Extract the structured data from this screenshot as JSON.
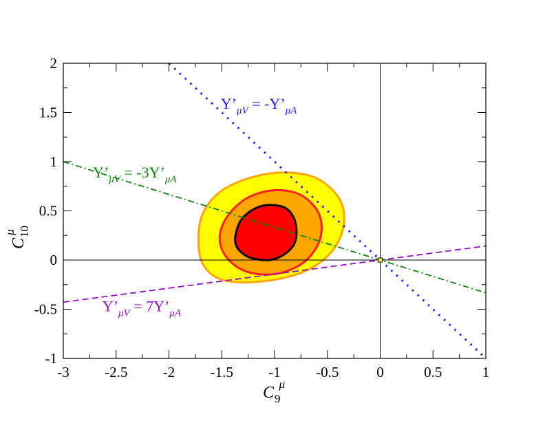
{
  "chart_data": {
    "type": "contour",
    "xlim": [
      -3,
      1
    ],
    "ylim": [
      -1,
      2
    ],
    "xticks": [
      "-3",
      "-2.5",
      "-2",
      "-1.5",
      "-1",
      "-0.5",
      "0",
      "0.5",
      "1"
    ],
    "yticks": [
      "-1",
      "-0.5",
      "0",
      "0.5",
      "1",
      "1.5",
      "2"
    ],
    "xtick_values": [
      -3,
      -2.5,
      -2,
      -1.5,
      -1,
      -0.5,
      0,
      0.5,
      1
    ],
    "ytick_values": [
      -1,
      -0.5,
      0,
      0.5,
      1,
      1.5,
      2
    ],
    "xlabel": {
      "base": "C",
      "sub": "9",
      "sup": "μ"
    },
    "ylabel": {
      "base": "C",
      "sub": "10",
      "sup": "μ"
    },
    "reference_lines": [
      {
        "axis": "x",
        "value": 0
      },
      {
        "axis": "y",
        "value": 0
      }
    ],
    "best_fit_point": {
      "x": 0,
      "y": 0
    },
    "regions": [
      {
        "name": "3-sigma",
        "fill": "#ffff00",
        "stroke": "#ffa500",
        "points": [
          [
            -1.72,
            0.22
          ],
          [
            -1.68,
            0.47
          ],
          [
            -1.52,
            0.69
          ],
          [
            -1.25,
            0.83
          ],
          [
            -0.92,
            0.89
          ],
          [
            -0.6,
            0.83
          ],
          [
            -0.38,
            0.61
          ],
          [
            -0.35,
            0.33
          ],
          [
            -0.48,
            0.06
          ],
          [
            -0.75,
            -0.13
          ],
          [
            -1.15,
            -0.22
          ],
          [
            -1.5,
            -0.2
          ],
          [
            -1.68,
            -0.04
          ]
        ]
      },
      {
        "name": "2-sigma",
        "fill": "#ffa500",
        "stroke": "#ff2020",
        "points": [
          [
            -1.52,
            0.22
          ],
          [
            -1.45,
            0.44
          ],
          [
            -1.26,
            0.63
          ],
          [
            -1.0,
            0.71
          ],
          [
            -0.75,
            0.66
          ],
          [
            -0.58,
            0.47
          ],
          [
            -0.57,
            0.21
          ],
          [
            -0.72,
            -0.02
          ],
          [
            -0.98,
            -0.14
          ],
          [
            -1.26,
            -0.12
          ],
          [
            -1.45,
            0.02
          ]
        ]
      },
      {
        "name": "1-sigma",
        "fill": "#ff0000",
        "stroke": "#000000",
        "points": [
          [
            -1.37,
            0.25
          ],
          [
            -1.3,
            0.43
          ],
          [
            -1.12,
            0.55
          ],
          [
            -0.9,
            0.53
          ],
          [
            -0.8,
            0.37
          ],
          [
            -0.82,
            0.15
          ],
          [
            -1.0,
            0.01
          ],
          [
            -1.22,
            0.02
          ],
          [
            -1.35,
            0.12
          ]
        ]
      }
    ],
    "lines": [
      {
        "name": "Y'_{μV} = -Y'_{μA}",
        "color": "#1a1aff",
        "style": "dotted",
        "slope": -1,
        "intercept": 0,
        "label": {
          "main1": "Y’",
          "sub1": "μV",
          "main2": " = -Y’",
          "sub2": "μA",
          "at": [
            -1.51,
            1.54
          ]
        }
      },
      {
        "name": "Y'_{μV} = -3Y'_{μA}",
        "color": "#108010",
        "style": "dashdot",
        "slope": -0.3333,
        "intercept": 0,
        "label": {
          "main1": "Y’",
          "sub1": "μV",
          "main2": " = -3Y’",
          "sub2": "μA",
          "at": [
            -2.72,
            0.84
          ]
        }
      },
      {
        "name": "Y'_{μV} = 7Y'_{μA}",
        "color": "#9010c0",
        "style": "dashed",
        "slope": 0.1429,
        "intercept": 0,
        "label": {
          "main1": "Y’",
          "sub1": "μV",
          "main2": " = 7Y’",
          "sub2": "μA",
          "at": [
            -2.63,
            -0.52
          ]
        }
      }
    ]
  }
}
